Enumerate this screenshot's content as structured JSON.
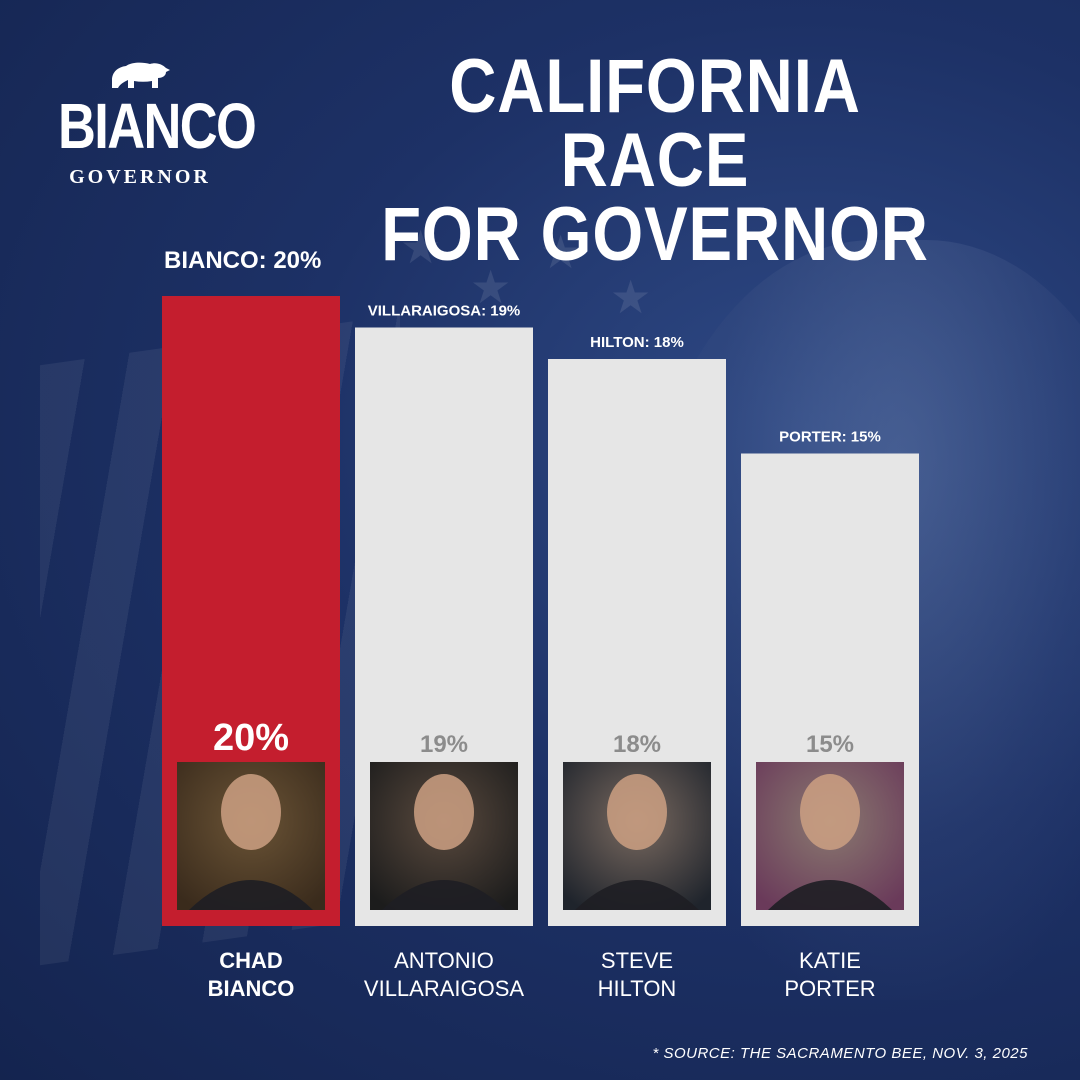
{
  "logo": {
    "main": "BIANCO",
    "sub": "GOVERNOR",
    "icon": "bear-icon"
  },
  "headline": {
    "line1": "CALIFORNIA RACE",
    "line2": "FOR GOVERNOR"
  },
  "colors": {
    "highlight": "#c41e2e",
    "bar": "#e6e6e6",
    "background": "#1d3166",
    "inner_label_highlight": "#ffffff",
    "inner_label": "#8c8c8c"
  },
  "chart_data": {
    "type": "bar",
    "title": "CALIFORNIA RACE FOR GOVERNOR",
    "categories": [
      "CHAD BIANCO",
      "ANTONIO VILLARAIGOSA",
      "STEVE HILTON",
      "KATIE PORTER"
    ],
    "values": [
      20,
      19,
      18,
      15
    ],
    "unit": "%",
    "top_labels": [
      "BIANCO: 20%",
      "VILLARAIGOSA: 19%",
      "HILTON: 18%",
      "PORTER: 15%"
    ],
    "inner_labels": [
      "20%",
      "19%",
      "18%",
      "15%"
    ],
    "name_lines": [
      [
        "CHAD",
        "BIANCO"
      ],
      [
        "ANTONIO",
        "VILLARAIGOSA"
      ],
      [
        "STEVE",
        "HILTON"
      ],
      [
        "KATIE",
        "PORTER"
      ]
    ],
    "highlight_index": 0,
    "xlabel": "",
    "ylabel": "",
    "grid": false
  },
  "source": "* SOURCE: THE SACRAMENTO BEE, NOV. 3, 2025"
}
